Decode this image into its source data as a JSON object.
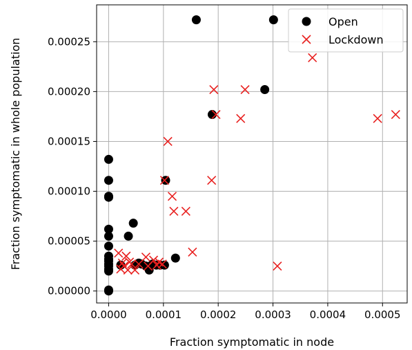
{
  "chart_data": {
    "type": "scatter",
    "xlabel": "Fraction symptomatic in node",
    "ylabel": "Fraction symptomatic in whole population",
    "xlim": [
      -2.2e-05,
      0.000545
    ],
    "ylim": [
      -1.2e-05,
      0.000287
    ],
    "xticks": [
      0,
      0.0001,
      0.0002,
      0.0003,
      0.0004,
      0.0005
    ],
    "xtick_labels": [
      "0.0000",
      "0.0001",
      "0.0002",
      "0.0003",
      "0.0004",
      "0.0005"
    ],
    "yticks": [
      0,
      5e-05,
      0.0001,
      0.00015,
      0.0002,
      0.00025
    ],
    "ytick_labels": [
      "0.00000",
      "0.00005",
      "0.00010",
      "0.00015",
      "0.00020",
      "0.00025"
    ],
    "grid": true,
    "legend_position": "top-right",
    "series": [
      {
        "name": "Open",
        "marker": "circle",
        "color": "#000000",
        "x": [
          0,
          0,
          0,
          0,
          0,
          0,
          0,
          0,
          0,
          0,
          0,
          0,
          0,
          0,
          0,
          0,
          2.2e-05,
          3.6e-05,
          4.5e-05,
          4.8e-05,
          5.5e-05,
          6e-05,
          6.8e-05,
          7.4e-05,
          8e-05,
          8.7e-05,
          9.4e-05,
          0.000102,
          0.000104,
          0.000122,
          0.00016,
          0.000189,
          0.000285,
          0.000301
        ],
        "y": [
          0,
          1e-06,
          2e-05,
          2.2e-05,
          2.5e-05,
          2.7e-05,
          3e-05,
          3.2e-05,
          3.5e-05,
          4.5e-05,
          5.5e-05,
          6.2e-05,
          9.4e-05,
          9.5e-05,
          0.000111,
          0.000132,
          2.6e-05,
          5.5e-05,
          6.8e-05,
          2.6e-05,
          2.8e-05,
          2.7e-05,
          2.5e-05,
          2.1e-05,
          2.7e-05,
          2.6e-05,
          2.6e-05,
          2.6e-05,
          0.000111,
          3.3e-05,
          0.000272,
          0.000177,
          0.000202,
          0.000272
        ]
      },
      {
        "name": "Lockdown",
        "marker": "x",
        "color": "#e8201f",
        "x": [
          1.8e-05,
          2.2e-05,
          2.5e-05,
          2.8e-05,
          3.2e-05,
          3.5e-05,
          3.8e-05,
          4.2e-05,
          4.8e-05,
          5.5e-05,
          6.8e-05,
          7.2e-05,
          8.2e-05,
          8.8e-05,
          9.2e-05,
          9.8e-05,
          0.000102,
          0.000108,
          0.000116,
          0.000119,
          0.000141,
          0.000153,
          0.000188,
          0.000192,
          0.000196,
          0.000241,
          0.000249,
          0.000308,
          0.000372,
          0.000491,
          0.000524
        ],
        "y": [
          3.8e-05,
          2.2e-05,
          2.8e-05,
          2.5e-05,
          3.5e-05,
          2.1e-05,
          2.9e-05,
          2.7e-05,
          2.1e-05,
          2.7e-05,
          3.4e-05,
          2.5e-05,
          3.1e-05,
          2.6e-05,
          2.9e-05,
          2.7e-05,
          0.000111,
          0.00015,
          9.5e-05,
          8e-05,
          8e-05,
          3.9e-05,
          0.000111,
          0.000202,
          0.000177,
          0.000173,
          0.000202,
          2.5e-05,
          0.000234,
          0.000173,
          0.000177
        ]
      }
    ]
  }
}
